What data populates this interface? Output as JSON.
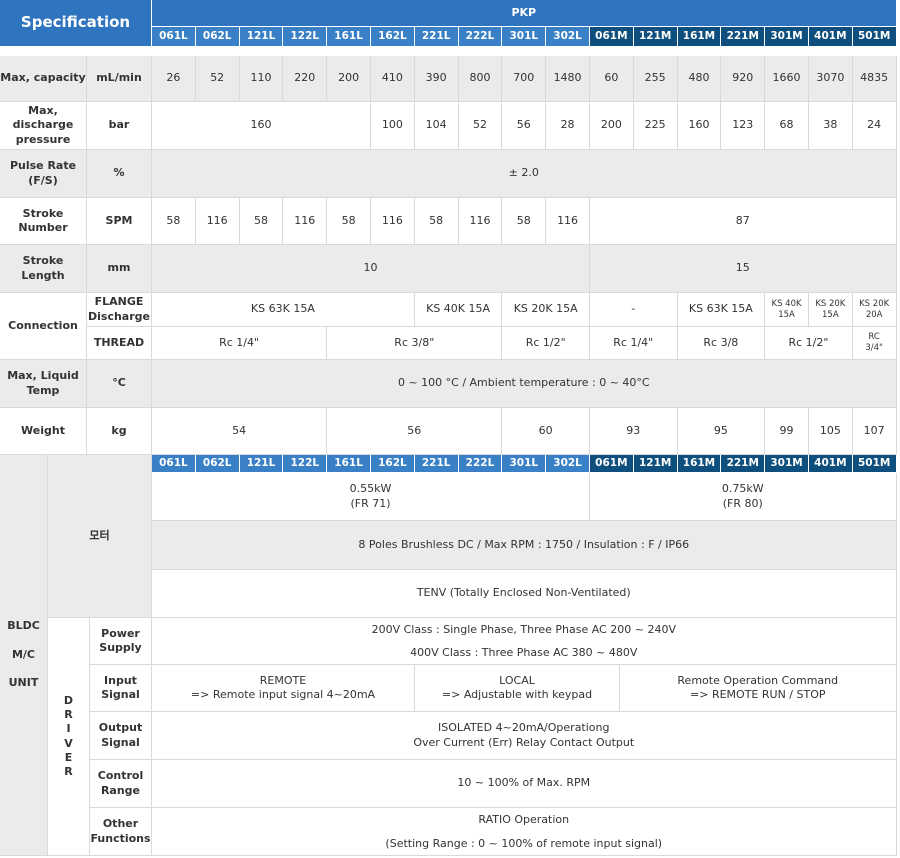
{
  "header": {
    "title": "Specification",
    "series": "PKP",
    "models": [
      "061L",
      "062L",
      "121L",
      "122L",
      "161L",
      "162L",
      "221L",
      "222L",
      "301L",
      "302L",
      "061M",
      "121M",
      "161M",
      "221M",
      "301M",
      "401M",
      "501M"
    ]
  },
  "rows": [
    {
      "label": "Max, capacity",
      "unit": "mL/min",
      "values": [
        "26",
        "52",
        "110",
        "220",
        "200",
        "410",
        "390",
        "800",
        "700",
        "1480",
        "60",
        "255",
        "480",
        "920",
        "1660",
        "3070",
        "4835"
      ]
    },
    {
      "label": "Max,\ndischarge\npressure",
      "unit": "bar",
      "values": [
        "160",
        "100",
        "104",
        "52",
        "56",
        "28",
        "200",
        "225",
        "160",
        "123",
        "68",
        "38",
        "24"
      ]
    },
    {
      "label": "Pulse Rate\n(F/S)",
      "unit": "%",
      "values": [
        "± 2.0"
      ]
    },
    {
      "label": "Stroke\nNumber",
      "unit": "SPM",
      "values": [
        "58",
        "116",
        "58",
        "116",
        "58",
        "116",
        "58",
        "116",
        "58",
        "116",
        "87"
      ]
    },
    {
      "label": "Stroke\nLength",
      "unit": "mm",
      "values": [
        "10",
        "15"
      ]
    },
    {
      "label": "Connection",
      "sub": [
        {
          "label": "FLANGE\n(Discharge)",
          "values": [
            "KS 63K 15A",
            "KS 40K 15A",
            "KS 20K 15A",
            "-",
            "KS 63K 15A",
            "KS 40K\n15A",
            "KS 20K\n15A",
            "KS 20K\n20A"
          ]
        },
        {
          "label": "THREAD",
          "values": [
            "Rc 1/4\"",
            "Rc 3/8\"",
            "Rc 1/2\"",
            "Rc 1/4\"",
            "Rc 3/8",
            "Rc 1/2\"",
            "RC\n3/4\""
          ]
        }
      ]
    },
    {
      "label": "Max, Liquid\nTemp",
      "unit": "°C",
      "values": [
        "0 ~ 100 °C  /  Ambient temperature : 0 ~ 40°C"
      ]
    },
    {
      "label": "Weight",
      "unit": "kg",
      "values": [
        "54",
        "56",
        "60",
        "93",
        "95",
        "99",
        "105",
        "107"
      ]
    }
  ],
  "bldc": {
    "label": "BLDC\n\nM/C\n\nUNIT"
  },
  "motor": {
    "label": "모터",
    "power": [
      "0.55kW\n(FR 71)",
      "0.75kW\n(FR 80)"
    ],
    "spec": "8 Poles Brushless DC  /  Max RPM : 1750  / Insulation : F  /  IP66",
    "enclosure": "TENV (Totally Enclosed Non-Ventilated)"
  },
  "driver": {
    "label": "D\nR\nI\nV\nE\nR",
    "rows": [
      {
        "label": "Power\nSupply",
        "value": "200V Class : Single Phase, Three Phase AC 200 ~ 240V\n400V Class : Three  Phase AC 380 ~ 480V"
      },
      {
        "label": "Input\nSignal",
        "values": [
          "REMOTE\n=>  Remote input signal 4~20mA",
          "LOCAL\n=>  Adjustable with keypad",
          "Remote Operation Command\n=> REMOTE RUN / STOP"
        ]
      },
      {
        "label": "Output\nSignal",
        "value": "ISOLATED 4~20mA/Operationg\nOver Current (Err) Relay Contact Output"
      },
      {
        "label": "Control\nRange",
        "value": "10 ~ 100% of Max. RPM"
      },
      {
        "label": "Other\nFunctions",
        "value": "RATIO Operation\n(Setting Range : 0 ~ 100% of remote input signal)"
      }
    ]
  }
}
